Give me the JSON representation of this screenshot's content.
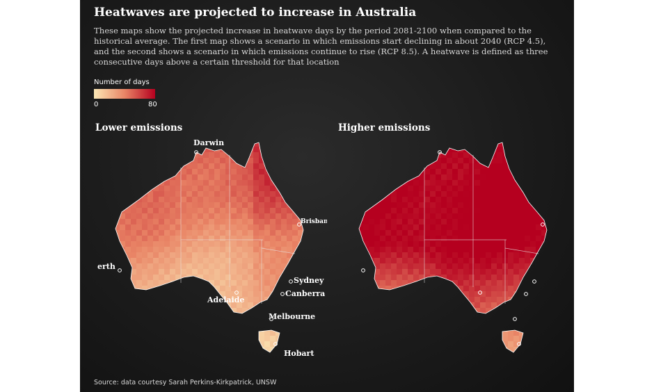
{
  "title": "Heatwaves are projected to increase in Australia",
  "subtitle": "These maps show the projected increase in heatwave days by the period 2081-2100 when compared to the historical average. The first map shows a scenario in which emissions start declining in about 2040 (RCP 4.5), and the second shows a scenario in which emissions continue to rise (RCP 8.5). A heatwave is defined as three consecutive days above a certain threshold for that location",
  "legend": {
    "title": "Number of days",
    "min_label": "0",
    "max_label": "80",
    "color_min": "#fbe7b5",
    "color_mid": "#e98566",
    "color_max": "#b5001f"
  },
  "maps": [
    {
      "title": "Lower emissions",
      "cities": [
        "Darwin",
        "Brisbane",
        "Perth",
        "Sydney",
        "Adelaide",
        "Canberra",
        "Melbourne",
        "Hobart"
      ]
    },
    {
      "title": "Higher emissions",
      "cities": []
    }
  ],
  "source": "Source: data courtesy Sarah Perkins-Kirkpatrick, UNSW"
}
